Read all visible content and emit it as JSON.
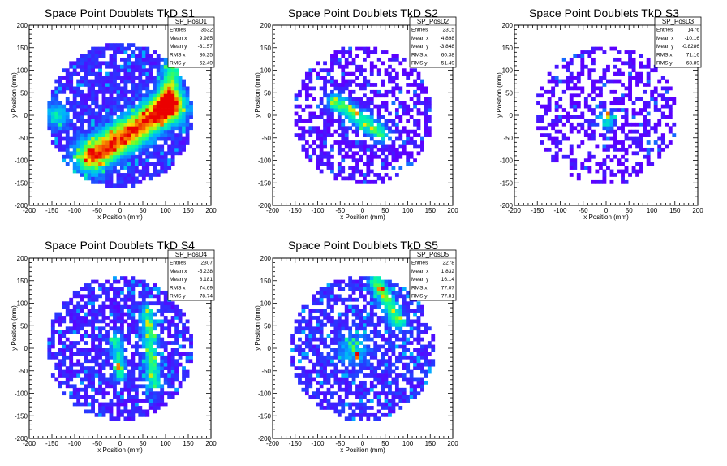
{
  "chart_data": [
    {
      "type": "heatmap",
      "title": "Space Point Doublets TkD S1",
      "xlabel": "x Position (mm)",
      "ylabel": "y Position (mm)",
      "xlim": [
        -200,
        200
      ],
      "ylim": [
        -200,
        200
      ],
      "xticks": [
        -200,
        -150,
        -100,
        -50,
        0,
        50,
        100,
        150,
        200
      ],
      "yticks": [
        -200,
        -150,
        -100,
        -50,
        0,
        50,
        100,
        150,
        200
      ],
      "stats": {
        "name": "SP_PosD1",
        "rows": [
          [
            "Entries",
            "3632"
          ],
          [
            "Mean x",
            "9.985"
          ],
          [
            "Mean y",
            "-31.57"
          ],
          [
            "RMS x",
            "80.25"
          ],
          [
            "RMS y",
            "62.49"
          ]
        ]
      },
      "detector_radius_mm": 160,
      "features": [
        {
          "type": "band",
          "from": [
            -60,
            -90
          ],
          "to": [
            110,
            20
          ],
          "width": 25,
          "peak": 0.85
        },
        {
          "type": "band",
          "from": [
            100,
            20
          ],
          "to": [
            120,
            120
          ],
          "width": 15,
          "peak": 0.5
        },
        {
          "type": "blob",
          "x": -140,
          "y": 0,
          "sigma": 20,
          "peak": 0.35
        }
      ],
      "hotspots": [
        [
          -20,
          -70,
          1.0
        ],
        [
          -40,
          -80,
          0.95
        ],
        [
          -10,
          -60,
          0.85
        ]
      ],
      "background": 0.12,
      "fill_probability": 0.7
    },
    {
      "type": "heatmap",
      "title": "Space Point Doublets TkD S2",
      "xlabel": "x Position (mm)",
      "ylabel": "y Position (mm)",
      "xlim": [
        -200,
        200
      ],
      "ylim": [
        -200,
        200
      ],
      "xticks": [
        -200,
        -150,
        -100,
        -50,
        0,
        50,
        100,
        150,
        200
      ],
      "yticks": [
        -200,
        -150,
        -100,
        -50,
        0,
        50,
        100,
        150,
        200
      ],
      "stats": {
        "name": "SP_PosD2",
        "rows": [
          [
            "Entries",
            "2315"
          ],
          [
            "Mean x",
            "4.898"
          ],
          [
            "Mean y",
            "-3.848"
          ],
          [
            "RMS x",
            "60.38"
          ],
          [
            "RMS y",
            "51.49"
          ]
        ]
      },
      "detector_radius_mm": 155,
      "features": [
        {
          "type": "band",
          "from": [
            -60,
            30
          ],
          "to": [
            40,
            -40
          ],
          "width": 15,
          "peak": 0.55
        }
      ],
      "hotspots": [
        [
          -10,
          5,
          0.95
        ],
        [
          -25,
          15,
          0.8
        ]
      ],
      "background": 0.03,
      "fill_probability": 0.5
    },
    {
      "type": "heatmap",
      "title": "Space Point Doublets TkD S3",
      "xlabel": "x Position (mm)",
      "ylabel": "y Position (mm)",
      "xlim": [
        -200,
        200
      ],
      "ylim": [
        -200,
        200
      ],
      "xticks": [
        -200,
        -150,
        -100,
        -50,
        0,
        50,
        100,
        150,
        200
      ],
      "yticks": [
        -200,
        -150,
        -100,
        -50,
        0,
        50,
        100,
        150,
        200
      ],
      "stats": {
        "name": "SP_PosD3",
        "rows": [
          [
            "Entries",
            "1476"
          ],
          [
            "Mean x",
            "-10.16"
          ],
          [
            "Mean y",
            "-0.8286"
          ],
          [
            "RMS x",
            "71.16"
          ],
          [
            "RMS y",
            "68.89"
          ]
        ]
      },
      "detector_radius_mm": 155,
      "features": [
        {
          "type": "blob",
          "x": 0,
          "y": -10,
          "sigma": 18,
          "peak": 0.45
        }
      ],
      "hotspots": [
        [
          5,
          0,
          0.85
        ]
      ],
      "background": 0.02,
      "fill_probability": 0.42
    },
    {
      "type": "heatmap",
      "title": "Space Point Doublets TkD S4",
      "xlabel": "x Position (mm)",
      "ylabel": "y Position (mm)",
      "xlim": [
        -200,
        200
      ],
      "ylim": [
        -200,
        200
      ],
      "xticks": [
        -200,
        -150,
        -100,
        -50,
        0,
        50,
        100,
        150,
        200
      ],
      "yticks": [
        -200,
        -150,
        -100,
        -50,
        0,
        50,
        100,
        150,
        200
      ],
      "stats": {
        "name": "SP_PosD4",
        "rows": [
          [
            "Entries",
            "2307"
          ],
          [
            "Mean x",
            "-5.238"
          ],
          [
            "Mean y",
            "8.181"
          ],
          [
            "RMS x",
            "74.69"
          ],
          [
            "RMS y",
            "78.74"
          ]
        ]
      },
      "detector_radius_mm": 160,
      "features": [
        {
          "type": "band",
          "from": [
            60,
            80
          ],
          "to": [
            75,
            -80
          ],
          "width": 12,
          "peak": 0.45
        },
        {
          "type": "band",
          "from": [
            -10,
            20
          ],
          "to": [
            0,
            -60
          ],
          "width": 10,
          "peak": 0.4
        }
      ],
      "hotspots": [
        [
          -5,
          -40,
          0.9
        ],
        [
          70,
          -20,
          0.65
        ]
      ],
      "background": 0.1,
      "fill_probability": 0.62
    },
    {
      "type": "heatmap",
      "title": "Space Point Doublets TkD S5",
      "xlabel": "x Position (mm)",
      "ylabel": "y Position (mm)",
      "xlim": [
        -200,
        200
      ],
      "ylim": [
        -200,
        200
      ],
      "xticks": [
        -200,
        -150,
        -100,
        -50,
        0,
        50,
        100,
        150,
        200
      ],
      "yticks": [
        -200,
        -150,
        -100,
        -50,
        0,
        50,
        100,
        150,
        200
      ],
      "stats": {
        "name": "SP_PosD5",
        "rows": [
          [
            "Entries",
            "2278"
          ],
          [
            "Mean x",
            "1.832"
          ],
          [
            "Mean y",
            "16.14"
          ],
          [
            "RMS x",
            "77.07"
          ],
          [
            "RMS y",
            "77.81"
          ]
        ]
      },
      "detector_radius_mm": 162,
      "features": [
        {
          "type": "band",
          "from": [
            30,
            150
          ],
          "to": [
            80,
            60
          ],
          "width": 12,
          "peak": 0.5
        },
        {
          "type": "blob",
          "x": -20,
          "y": 0,
          "sigma": 25,
          "peak": 0.3
        }
      ],
      "hotspots": [
        [
          40,
          135,
          0.95
        ],
        [
          -10,
          -15,
          0.85
        ],
        [
          70,
          85,
          0.75
        ]
      ],
      "background": 0.12,
      "fill_probability": 0.58
    }
  ]
}
